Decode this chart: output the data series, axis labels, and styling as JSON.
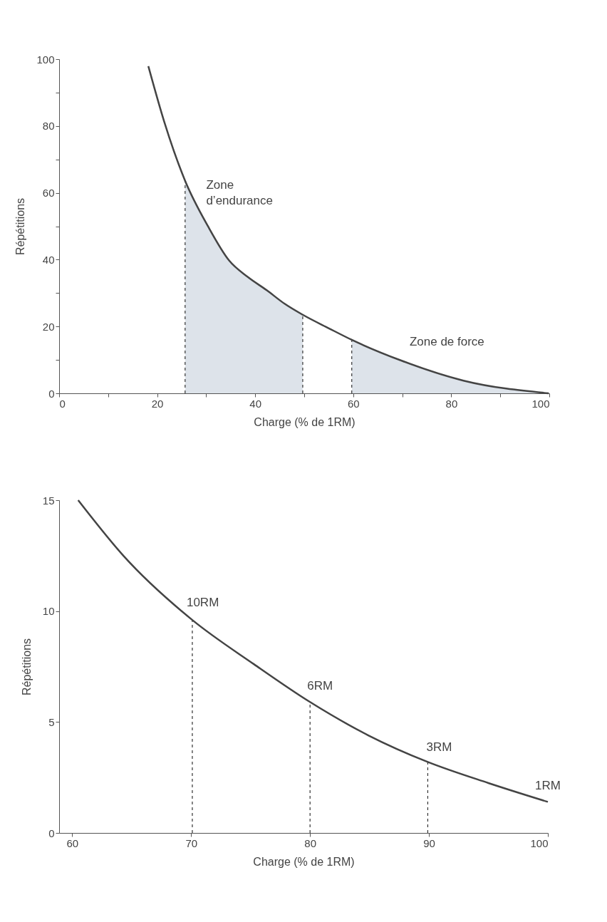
{
  "chart_data": [
    {
      "type": "line",
      "xlabel": "Charge (% de 1RM)",
      "ylabel": "Répétitions",
      "x": [
        18.2,
        21.5,
        25.7,
        30.4,
        34.7,
        38.5,
        42.4,
        46,
        49.7,
        55.1,
        59.7,
        69.8,
        82.5,
        99.9
      ],
      "series": [
        {
          "color": "#444444",
          "values": [
            97.9,
            81,
            63.6,
            49.9,
            39.7,
            34.8,
            30.8,
            26.8,
            23.5,
            19.4,
            16,
            9.8,
            3.8,
            0
          ]
        },
        {
          "type": "area",
          "color": "#dde3ea",
          "x": [
            25.7,
            30.4,
            34.7,
            38.5,
            42.4,
            46,
            49.7
          ],
          "values": [
            63.6,
            49.9,
            39.7,
            34.8,
            30.8,
            26.8,
            23.5
          ]
        },
        {
          "type": "area",
          "color": "#dde3ea",
          "x": [
            59.7,
            69.8,
            82.5,
            99.9
          ],
          "values": [
            16,
            9.8,
            3.8,
            0
          ]
        }
      ],
      "xlim": [
        0,
        100
      ],
      "ylim": [
        0,
        100
      ],
      "xticks": [
        0,
        {
          "value": 10,
          "label": null
        },
        20,
        {
          "value": 30,
          "label": null
        },
        40,
        {
          "value": 50,
          "label": null
        },
        60,
        {
          "value": 70,
          "label": null
        },
        80,
        {
          "value": 90,
          "label": null
        },
        100
      ],
      "yticks": [
        0,
        {
          "value": 10,
          "label": null
        },
        20,
        {
          "value": 30,
          "label": null
        },
        40,
        {
          "value": 50,
          "label": null
        },
        60,
        {
          "value": 70,
          "label": null
        },
        80,
        {
          "value": 90,
          "label": null
        },
        100
      ],
      "ref_lines": [
        {
          "axis": "x",
          "value": 25.7,
          "line_style": "dashed"
        },
        {
          "axis": "x",
          "value": 49.7,
          "line_style": "dashed"
        },
        {
          "axis": "x",
          "value": 59.7,
          "line_style": "dashed"
        }
      ],
      "annotations": [
        "Zone\nd’endurance",
        "Zone de force"
      ],
      "grid": false,
      "legend": false,
      "line_style": "solid",
      "marker": "none"
    },
    {
      "type": "line",
      "xlabel": "Charge (% de 1RM)",
      "ylabel": "Répétitions",
      "x": [
        60.5,
        64.3,
        70.1,
        75.3,
        80,
        84.9,
        89.9,
        95,
        100
      ],
      "series": [
        {
          "color": "#444444",
          "values": [
            15,
            12.5,
            9.6,
            7.6,
            5.9,
            4.4,
            3.2,
            2.25,
            1.4
          ]
        }
      ],
      "xlim": [
        58.9,
        100
      ],
      "ylim": [
        0,
        15
      ],
      "xticks": [
        60,
        70,
        80,
        90,
        100
      ],
      "yticks": [
        0,
        5,
        10,
        15
      ],
      "ref_lines": [
        {
          "axis": "x",
          "value": 70.1,
          "line_style": "dashed"
        },
        {
          "axis": "x",
          "value": 80,
          "line_style": "dashed"
        },
        {
          "axis": "x",
          "value": 89.9,
          "line_style": "dashed"
        }
      ],
      "annotations": [
        {
          "text": "10RM",
          "x": 70.1,
          "y": 9.6
        },
        {
          "text": "6RM",
          "x": 80,
          "y": 5.9
        },
        {
          "text": "3RM",
          "x": 89.9,
          "y": 3.2
        },
        {
          "text": "1RM",
          "x": 100,
          "y": 1.4
        }
      ],
      "grid": false,
      "legend": false,
      "line_style": "solid",
      "marker": "none"
    }
  ]
}
